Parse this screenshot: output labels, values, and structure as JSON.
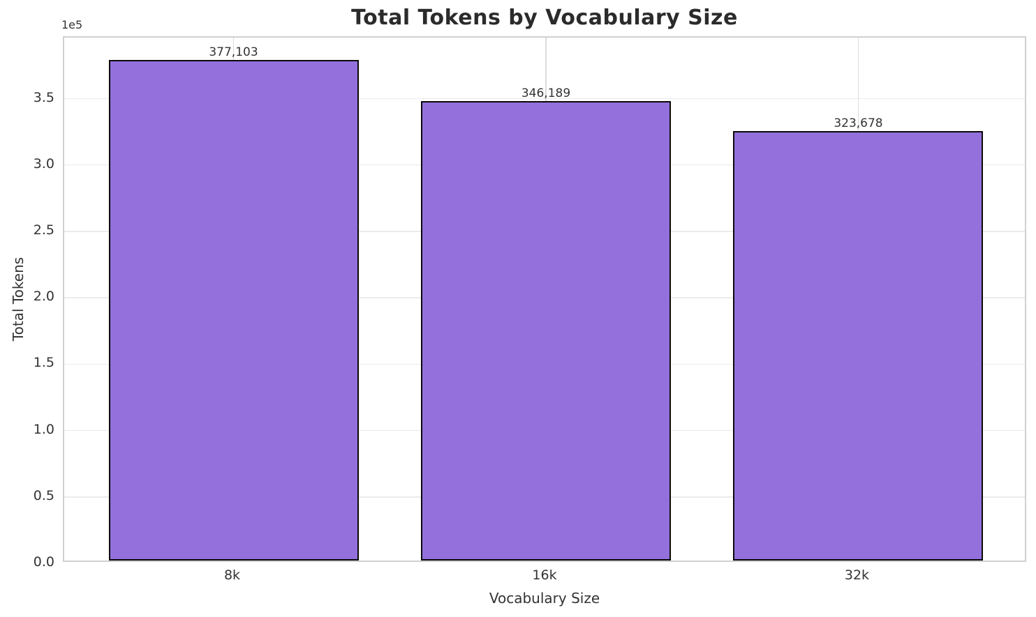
{
  "chart_data": {
    "type": "bar",
    "title": "Total Tokens by Vocabulary Size",
    "xlabel": "Vocabulary Size",
    "ylabel": "Total Tokens",
    "y_offset_text": "1e5",
    "categories": [
      "8k",
      "16k",
      "32k"
    ],
    "values": [
      377103,
      346189,
      323678
    ],
    "value_labels": [
      "377,103",
      "346,189",
      "323,678"
    ],
    "y_ticks": [
      {
        "label": "0.0",
        "value": 0
      },
      {
        "label": "0.5",
        "value": 50000
      },
      {
        "label": "1.0",
        "value": 100000
      },
      {
        "label": "1.5",
        "value": 150000
      },
      {
        "label": "2.0",
        "value": 200000
      },
      {
        "label": "2.5",
        "value": 250000
      },
      {
        "label": "3.0",
        "value": 300000
      },
      {
        "label": "3.5",
        "value": 350000
      }
    ],
    "ylim": [
      0,
      395958
    ],
    "grid": true,
    "legend": null,
    "colors": {
      "bar_fill": "#9370DB",
      "bar_edge": "#0a0a0a",
      "grid_h": "#ebebeb",
      "grid_v": "#dcdcdc",
      "spine": "#d0d0d0",
      "text": "#333333",
      "title_text": "#2b2b2b"
    }
  }
}
